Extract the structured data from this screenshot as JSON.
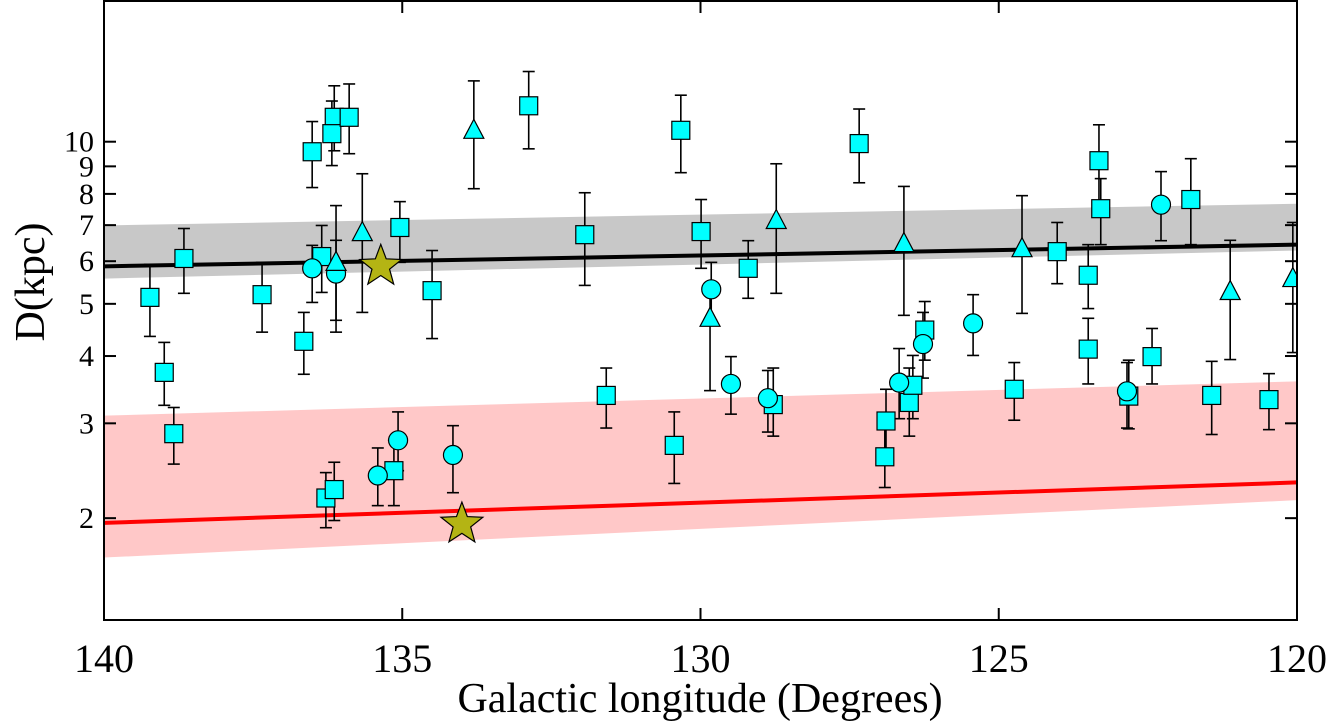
{
  "chart_data": {
    "type": "scatter",
    "xlabel": "Galactic longitude (Degrees)",
    "ylabel": "D(kpc)",
    "xlim": [
      140,
      120
    ],
    "ylim": [
      1.294,
      18.25
    ],
    "ylog": true,
    "grid": false,
    "xticks": [
      140,
      135,
      130,
      125,
      120
    ],
    "yticks": [
      2,
      3,
      4,
      5,
      6,
      7,
      8,
      9,
      10
    ],
    "bands": [
      {
        "color": "#c8c8c8",
        "x": [
          140,
          120
        ],
        "low": [
          5.57,
          6.28
        ],
        "high": [
          6.99,
          7.67
        ]
      },
      {
        "color": "#ffc8c8",
        "x": [
          140,
          120
        ],
        "low": [
          1.69,
          2.16
        ],
        "high": [
          3.1,
          3.59
        ]
      }
    ],
    "lines": [
      {
        "color": "#000000",
        "x": [
          140,
          120
        ],
        "values": [
          5.87,
          6.44
        ]
      },
      {
        "color": "#ff0000",
        "x": [
          140,
          120
        ],
        "values": [
          1.96,
          2.33
        ]
      }
    ],
    "series": [
      {
        "marker": "square",
        "color": "#00ffff",
        "x": [
          139.23,
          138.99,
          138.83,
          138.66,
          137.35,
          136.65,
          136.51,
          136.35,
          136.14,
          136.18,
          135.89,
          136.28,
          136.14,
          135.14,
          135.04,
          134.5,
          132.88,
          131.94,
          131.58,
          130.44,
          130.33,
          129.99,
          129.2,
          128.78,
          127.34,
          126.89,
          126.91,
          126.5,
          126.44,
          126.24,
          124.74,
          124.02,
          123.5,
          123.5,
          123.32,
          123.29,
          122.82,
          122.43,
          121.78,
          121.43,
          120.47
        ],
        "values": [
          5.14,
          3.73,
          2.87,
          6.07,
          5.2,
          4.26,
          9.58,
          6.12,
          11.1,
          10.35,
          11.1,
          2.18,
          2.26,
          2.45,
          6.93,
          5.29,
          11.66,
          6.72,
          3.38,
          2.73,
          10.5,
          6.81,
          5.82,
          3.25,
          9.92,
          3.03,
          2.6,
          3.28,
          3.53,
          4.47,
          3.47,
          6.25,
          5.65,
          4.12,
          9.22,
          7.51,
          3.37,
          3.99,
          7.81,
          3.38,
          3.32
        ],
        "lower": [
          4.35,
          3.24,
          2.52,
          5.23,
          4.43,
          3.7,
          8.22,
          5.25,
          9.62,
          9.03,
          9.5,
          1.92,
          1.98,
          2.11,
          5.97,
          4.31,
          9.7,
          5.41,
          2.94,
          2.32,
          8.76,
          5.82,
          5.12,
          2.84,
          8.39,
          2.6,
          2.28,
          2.84,
          3.06,
          3.93,
          3.04,
          5.45,
          4.9,
          3.55,
          7.71,
          6.44,
          2.93,
          3.55,
          6.44,
          2.86,
          2.92
        ],
        "upper": [
          5.92,
          4.24,
          3.21,
          6.9,
          5.97,
          4.82,
          10.9,
          6.99,
          12.7,
          11.9,
          12.8,
          2.43,
          2.54,
          2.79,
          7.74,
          6.28,
          13.5,
          8.04,
          3.8,
          3.15,
          12.2,
          7.81,
          6.55,
          3.8,
          11.5,
          3.47,
          2.94,
          3.8,
          4.01,
          5.05,
          3.89,
          7.08,
          6.44,
          4.7,
          10.75,
          8.54,
          3.93,
          4.5,
          9.3,
          3.91,
          3.71
        ]
      },
      {
        "marker": "circle",
        "color": "#00ffff",
        "x": [
          136.51,
          136.11,
          135.41,
          135.07,
          134.15,
          129.82,
          129.49,
          128.87,
          126.67,
          126.27,
          125.43,
          122.85,
          122.28
        ],
        "values": [
          5.82,
          5.69,
          2.4,
          2.79,
          2.62,
          5.32,
          3.55,
          3.34,
          3.57,
          4.21,
          4.6,
          3.44,
          7.64
        ],
        "lower": [
          5.03,
          4.66,
          2.11,
          2.45,
          2.23,
          4.66,
          3.12,
          2.89,
          3.06,
          3.64,
          4.01,
          2.94,
          6.55
        ],
        "upper": [
          6.42,
          6.56,
          2.7,
          3.15,
          2.97,
          5.97,
          3.99,
          3.76,
          4.13,
          4.82,
          5.2,
          3.89,
          8.8
        ]
      },
      {
        "marker": "triangle",
        "color": "#00ffff",
        "x": [
          136.11,
          135.67,
          133.8,
          129.84,
          128.73,
          126.59,
          124.61,
          121.12,
          120.07
        ],
        "values": [
          5.97,
          6.78,
          10.5,
          4.7,
          7.14,
          6.47,
          6.33,
          5.27,
          5.57
        ],
        "lower": [
          4.43,
          4.82,
          8.18,
          3.45,
          5.23,
          4.76,
          4.8,
          3.94,
          4.06
        ],
        "upper": [
          7.61,
          8.72,
          12.97,
          5.45,
          9.1,
          8.26,
          7.94,
          6.56,
          7.08
        ]
      },
      {
        "marker": "star",
        "color": "#b4b414",
        "x": [
          135.36,
          134.0
        ],
        "values": [
          5.87,
          1.95
        ]
      }
    ]
  }
}
